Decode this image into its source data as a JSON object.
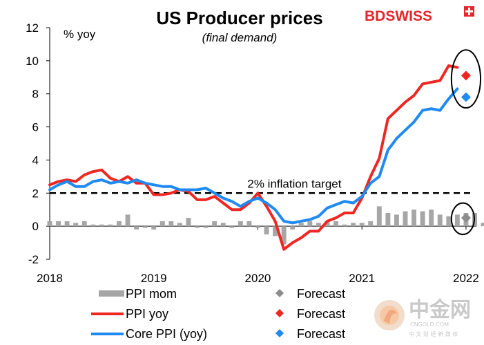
{
  "brand": {
    "name": "BDSWISS",
    "color_dark": "#1a1a1a",
    "color_red": "#e3262b"
  },
  "watermark": {
    "text_cn": "中金网",
    "site": "CNGOLD.COM",
    "tagline": "中 文 财 经 新 媒 体"
  },
  "chart_data": {
    "type": "line",
    "title": "US Producer prices",
    "subtitle": "(final demand)",
    "ylabel": "% yoy",
    "ylim": [
      -2,
      12
    ],
    "yticks": [
      -2,
      0,
      2,
      4,
      6,
      8,
      10,
      12
    ],
    "xlim": [
      2018,
      2022.1
    ],
    "xticks": [
      {
        "value": 2018,
        "label": "2018"
      },
      {
        "value": 2019,
        "label": "2019"
      },
      {
        "value": 2020,
        "label": "2020"
      },
      {
        "value": 2021,
        "label": "2021"
      },
      {
        "value": 2022,
        "label": "2022"
      }
    ],
    "annotation": {
      "text": "2% inflation target",
      "y": 2
    },
    "target_line": {
      "y": 2,
      "x_start": 2018,
      "x_end": 2022.05
    },
    "highlight_ellipses": [
      {
        "x_center": 2022.0,
        "y_center": 8.9,
        "x_halfwidth": 0.14,
        "y_halfwidth": 1.75
      },
      {
        "x_center": 2021.97,
        "y_center": 0.45,
        "x_halfwidth": 0.11,
        "y_halfwidth": 0.95
      }
    ],
    "colors": {
      "ppi_mom": "#a6a6a6",
      "ppi_yoy": "#ee2722",
      "core_yoy": "#1e8af2",
      "forecast_mom": "#8c8c8c",
      "target": "#000000"
    },
    "series": [
      {
        "name": "PPI mom",
        "kind": "bar",
        "x_start": 2018.0,
        "x_step": 0.083333,
        "values": [
          0.3,
          0.3,
          0.3,
          0.2,
          0.3,
          0.1,
          0.1,
          0.1,
          0.3,
          0.7,
          -0.2,
          -0.1,
          -0.2,
          0.3,
          0.3,
          0.2,
          0.5,
          -0.1,
          -0.1,
          0.3,
          0.2,
          -0.1,
          0.3,
          0.3,
          -0.1,
          -0.5,
          -0.6,
          -1.1,
          -0.2,
          0.2,
          0.3,
          0.2,
          0.3,
          0.3,
          0.1,
          0.2,
          0.2,
          0.3,
          1.2,
          0.8,
          0.7,
          0.9,
          1.0,
          0.9,
          1.0,
          0.7,
          0.6,
          0.7,
          0.8,
          0.8,
          0.2
        ]
      },
      {
        "name": "PPI yoy",
        "kind": "line",
        "x_start": 2018.0,
        "x_step": 0.083333,
        "values": [
          2.5,
          2.7,
          2.8,
          2.7,
          3.1,
          3.3,
          3.4,
          2.9,
          2.7,
          3.0,
          2.6,
          2.6,
          1.9,
          1.9,
          2.0,
          2.2,
          2.1,
          1.6,
          1.6,
          1.8,
          1.4,
          1.0,
          1.0,
          1.4,
          2.0,
          1.2,
          0.3,
          -1.4,
          -1.0,
          -0.7,
          -0.3,
          -0.3,
          0.3,
          0.5,
          0.8,
          0.8,
          1.7,
          3.0,
          4.1,
          6.5,
          7.0,
          7.5,
          7.9,
          8.6,
          8.7,
          8.8,
          9.7,
          9.6
        ]
      },
      {
        "name": "Core PPI (yoy)",
        "kind": "line",
        "x_start": 2018.0,
        "x_step": 0.083333,
        "values": [
          2.2,
          2.5,
          2.7,
          2.4,
          2.4,
          2.7,
          2.8,
          2.6,
          2.7,
          2.6,
          2.8,
          2.6,
          2.5,
          2.4,
          2.4,
          2.2,
          2.2,
          2.2,
          2.3,
          2.0,
          1.7,
          1.5,
          1.2,
          1.5,
          1.7,
          1.4,
          1.0,
          0.3,
          0.2,
          0.3,
          0.4,
          0.6,
          1.1,
          1.3,
          1.5,
          1.4,
          1.8,
          2.6,
          3.0,
          4.6,
          5.3,
          5.8,
          6.3,
          7.0,
          7.1,
          7.0,
          7.7,
          8.3
        ]
      }
    ],
    "forecasts": [
      {
        "series": "PPI mom",
        "x": 2022.0,
        "y": 0.5
      },
      {
        "series": "PPI yoy",
        "x": 2022.0,
        "y": 9.1
      },
      {
        "series": "Core PPI (yoy)",
        "x": 2022.0,
        "y": 7.8
      }
    ],
    "legend": {
      "placement": "bottom",
      "entries": [
        {
          "key": "PPI mom",
          "label": "PPI mom",
          "marker": "bar"
        },
        {
          "key": "PPI mom forecast",
          "label": "Forecast",
          "marker": "diamond-gray"
        },
        {
          "key": "PPI yoy",
          "label": "PPI yoy",
          "marker": "line-red"
        },
        {
          "key": "PPI yoy forecast",
          "label": "Forecast",
          "marker": "diamond-red"
        },
        {
          "key": "Core PPI (yoy)",
          "label": "Core PPI (yoy)",
          "marker": "line-blue"
        },
        {
          "key": "Core forecast",
          "label": "Forecast",
          "marker": "diamond-blue"
        }
      ]
    }
  }
}
